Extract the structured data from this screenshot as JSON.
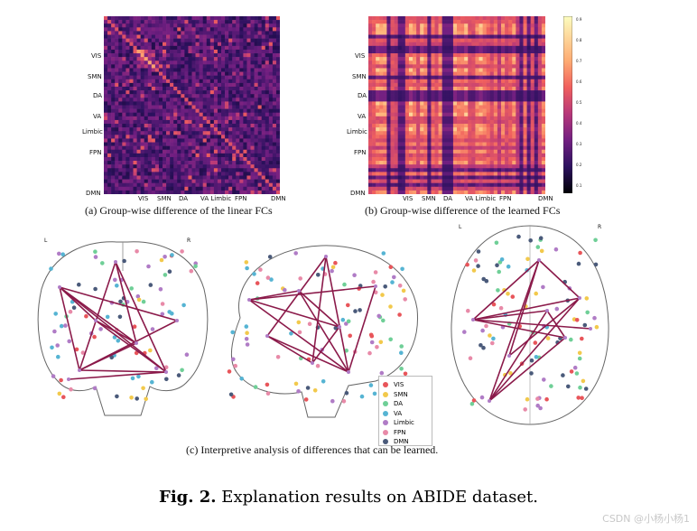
{
  "panel_a": {
    "caption": "(a) Group-wise difference of the linear FCs",
    "y_labels": [
      "VIS",
      "SMN",
      "DA",
      "VA",
      "Limbic",
      "FPN",
      "DMN"
    ],
    "x_labels": [
      "VIS",
      "SMN",
      "DA",
      "VA Limbic",
      "FPN",
      "DMN"
    ]
  },
  "panel_b": {
    "caption": "(b) Group-wise difference of the learned FCs",
    "y_labels": [
      "VIS",
      "SMN",
      "DA",
      "VA",
      "Limbic",
      "FPN",
      "DMN"
    ],
    "x_labels": [
      "VIS",
      "SMN",
      "DA",
      "VA Limbic",
      "FPN",
      "DMN"
    ],
    "colorbar_ticks": [
      "0.9",
      "0.8",
      "0.7",
      "0.6",
      "0.5",
      "0.4",
      "0.3",
      "0.2",
      "0.1"
    ]
  },
  "panel_c": {
    "caption": "(c) Interpretive analysis of differences that can be learned.",
    "left_marker": "L",
    "right_marker": "R",
    "left_marker_2": "L",
    "right_marker_2": "R"
  },
  "legend": [
    {
      "label": "VIS",
      "color": "#e8555a"
    },
    {
      "label": "SMN",
      "color": "#f2c94c"
    },
    {
      "label": "DA",
      "color": "#6fcf97"
    },
    {
      "label": "VA",
      "color": "#56b4d3"
    },
    {
      "label": "Limbic",
      "color": "#b07cc6"
    },
    {
      "label": "FPN",
      "color": "#e88aa8"
    },
    {
      "label": "DMN",
      "color": "#4a5a7a"
    }
  ],
  "figure_caption": {
    "label": "Fig. 2.",
    "text": " Explanation results on ABIDE dataset."
  },
  "watermark": "CSDN @小杨小杨1",
  "colors": {
    "edge": "#8b1a4a",
    "outline": "#555555"
  }
}
